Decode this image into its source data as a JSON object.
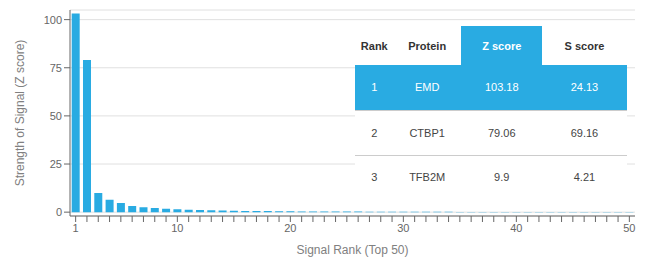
{
  "chart_data": {
    "type": "bar",
    "xlabel": "Signal Rank (Top 50)",
    "ylabel": "Strength of Signal (Z score)",
    "categories": [
      "1",
      null,
      null,
      null,
      null,
      null,
      null,
      null,
      null,
      "10",
      null,
      null,
      null,
      null,
      null,
      null,
      null,
      null,
      null,
      "20",
      null,
      null,
      null,
      null,
      null,
      null,
      null,
      null,
      null,
      "30",
      null,
      null,
      null,
      null,
      null,
      null,
      null,
      null,
      null,
      "40",
      null,
      null,
      null,
      null,
      null,
      null,
      null,
      null,
      null,
      "50"
    ],
    "values": [
      103.18,
      79.06,
      9.9,
      6.5,
      4.8,
      3.2,
      2.5,
      2.1,
      1.8,
      1.5,
      1.3,
      1.1,
      0.95,
      0.85,
      0.75,
      0.65,
      0.6,
      0.55,
      0.5,
      0.45,
      0.4,
      0.38,
      0.35,
      0.33,
      0.3,
      0.28,
      0.26,
      0.24,
      0.22,
      0.2,
      0.18,
      0.17,
      0.16,
      0.15,
      0.14,
      0.13,
      0.12,
      0.11,
      0.1,
      0.09,
      0.085,
      0.08,
      0.075,
      0.07,
      0.065,
      0.06,
      0.055,
      0.05,
      0.045,
      0.04
    ],
    "color": "#29ABE2",
    "ylim": [
      -2,
      105
    ],
    "yticks": [
      0,
      25,
      50,
      75,
      100
    ],
    "grid": true,
    "table": {
      "columns": [
        "Rank",
        "Protein",
        "Z score",
        "S score"
      ],
      "rows": [
        [
          "1",
          "EMD",
          "103.18",
          "24.13"
        ],
        [
          "2",
          "CTBP1",
          "79.06",
          "69.16"
        ],
        [
          "3",
          "TFB2M",
          "9.9",
          "4.21"
        ]
      ]
    }
  }
}
